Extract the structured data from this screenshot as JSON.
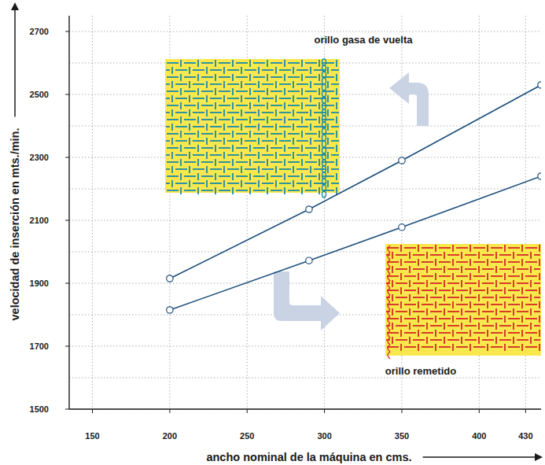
{
  "chart_data": {
    "type": "line",
    "x_label": "ancho nominal de la máquina en cms.",
    "y_label": "velocidad de inserción en mts./min.",
    "x": [
      200,
      290,
      350,
      440
    ],
    "series": [
      {
        "name": "orillo gasa de vuelta",
        "color": "#1d4f7c",
        "marker": "circle",
        "line_style": "solid",
        "values": [
          1915,
          2135,
          2290,
          2530
        ]
      },
      {
        "name": "orillo remetido",
        "color": "#1d4f7c",
        "marker": "circle",
        "line_style": "solid",
        "values": [
          1815,
          1972,
          2078,
          2240
        ]
      }
    ],
    "xlim": [
      135,
      440
    ],
    "xticks": [
      150,
      200,
      250,
      300,
      350,
      400,
      430
    ],
    "ylim": [
      1500,
      2750
    ],
    "yticks": [
      1500,
      1700,
      1900,
      2100,
      2300,
      2500,
      2700
    ],
    "grid": true
  }
}
